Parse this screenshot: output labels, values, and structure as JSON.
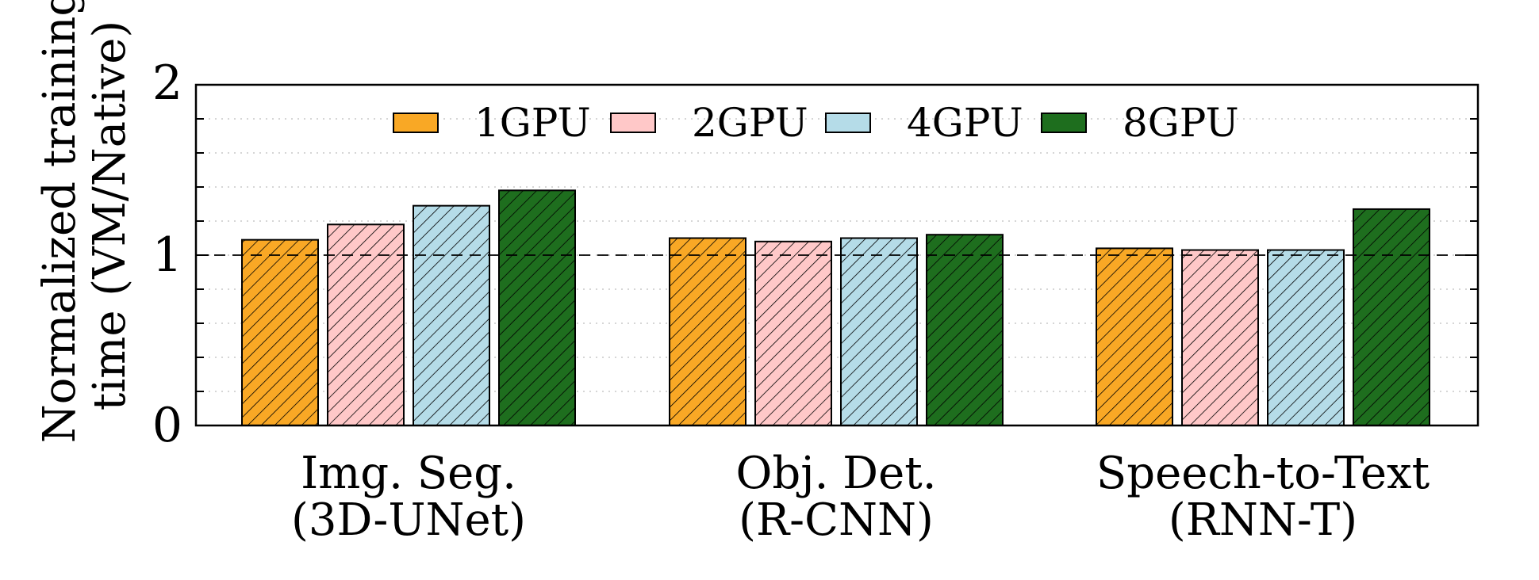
{
  "chart_data": {
    "type": "bar",
    "ylabel_lines": [
      "Normalized training",
      "time (VM/Native)"
    ],
    "categories": [
      {
        "line1": "Img. Seg.",
        "line2": "(3D-UNet)"
      },
      {
        "line1": "Obj. Det.",
        "line2": "(R-CNN)"
      },
      {
        "line1": "Speech-to-Text",
        "line2": "(RNN-T)"
      }
    ],
    "series": [
      {
        "name": "1GPU",
        "color": "#f9a825",
        "values": [
          1.09,
          1.1,
          1.04
        ]
      },
      {
        "name": "2GPU",
        "color": "#ffc8c8",
        "values": [
          1.18,
          1.08,
          1.03
        ]
      },
      {
        "name": "4GPU",
        "color": "#b5dce8",
        "values": [
          1.29,
          1.1,
          1.03
        ]
      },
      {
        "name": "8GPU",
        "color": "#1e6e1e",
        "values": [
          1.38,
          1.12,
          1.27
        ]
      }
    ],
    "ylim": [
      0,
      2
    ],
    "yticks": [
      "0",
      "1",
      "2"
    ],
    "reference_line": 1,
    "grid": "horizontal dotted",
    "legend_position": "top-center",
    "pattern": "diagonal hatch"
  }
}
